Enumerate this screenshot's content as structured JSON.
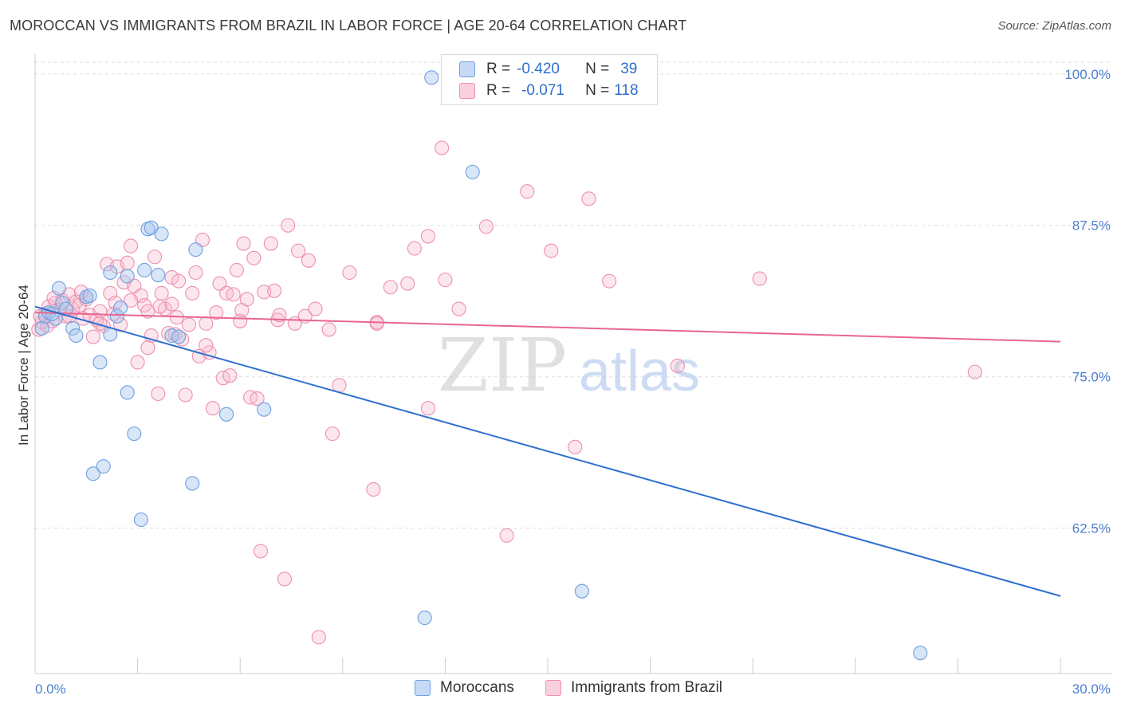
{
  "title": "MOROCCAN VS IMMIGRANTS FROM BRAZIL IN LABOR FORCE | AGE 20-64 CORRELATION CHART",
  "source": "Source: ZipAtlas.com",
  "watermark": {
    "zip": "ZIP",
    "atlas": "atlas"
  },
  "colors": {
    "blue_fill": "#a9c8f0",
    "blue_stroke": "#6f9fe0",
    "blue_line": "#2e6fd0",
    "pink_fill": "#f7b8cc",
    "pink_stroke": "#ee8fae",
    "pink_line": "#e8668f",
    "tick_text": "#4a7fd0",
    "grid": "#dddddd"
  },
  "legend": {
    "rows": [
      {
        "r_label": "R =",
        "r_value": "-0.420",
        "n_label": "N =",
        "n_value": "39"
      },
      {
        "r_label": "R =",
        "r_value": "-0.071",
        "n_label": "N =",
        "n_value": "118"
      }
    ]
  },
  "bottom_legend": [
    "Moroccans",
    "Immigrants from Brazil"
  ],
  "chart_data": {
    "type": "scatter",
    "title": "MOROCCAN VS IMMIGRANTS FROM BRAZIL IN LABOR FORCE | AGE 20-64 CORRELATION CHART",
    "xlabel": "",
    "ylabel": "In Labor Force | Age 20-64",
    "xlim": [
      0,
      30
    ],
    "ylim": [
      50.5,
      101.5
    ],
    "x_tick_labels": [
      "0.0%",
      "30.0%"
    ],
    "y_ticks": [
      62.5,
      75.0,
      87.5,
      100.0
    ],
    "y_tick_labels": [
      "62.5%",
      "75.0%",
      "87.5%",
      "100.0%"
    ],
    "grid": true,
    "series": [
      {
        "name": "Moroccans",
        "r": -0.42,
        "n": 39,
        "trend": [
          [
            0.0,
            80.8
          ],
          [
            30.0,
            56.9
          ]
        ],
        "points": [
          [
            0.2,
            79.0
          ],
          [
            0.3,
            80.0
          ],
          [
            0.4,
            80.3
          ],
          [
            0.6,
            79.8
          ],
          [
            0.7,
            82.3
          ],
          [
            0.8,
            81.1
          ],
          [
            0.9,
            80.6
          ],
          [
            1.1,
            79.0
          ],
          [
            1.2,
            78.4
          ],
          [
            1.5,
            81.6
          ],
          [
            1.6,
            81.7
          ],
          [
            1.9,
            76.2
          ],
          [
            2.2,
            78.5
          ],
          [
            2.2,
            83.6
          ],
          [
            2.4,
            80.0
          ],
          [
            2.5,
            80.7
          ],
          [
            2.7,
            73.7
          ],
          [
            2.7,
            83.3
          ],
          [
            2.9,
            70.3
          ],
          [
            3.1,
            63.2
          ],
          [
            3.2,
            83.8
          ],
          [
            3.3,
            87.2
          ],
          [
            3.4,
            87.3
          ],
          [
            3.6,
            83.4
          ],
          [
            3.7,
            86.8
          ],
          [
            4.0,
            78.4
          ],
          [
            4.6,
            66.2
          ],
          [
            4.7,
            85.5
          ],
          [
            5.6,
            71.9
          ],
          [
            6.7,
            72.3
          ],
          [
            11.4,
            55.1
          ],
          [
            11.6,
            99.7
          ],
          [
            12.8,
            91.9
          ],
          [
            16.0,
            57.3
          ],
          [
            25.9,
            52.2
          ],
          [
            1.7,
            67.0
          ],
          [
            2.0,
            67.6
          ],
          [
            0.5,
            80.2
          ],
          [
            4.2,
            78.3
          ]
        ]
      },
      {
        "name": "Immigrants from Brazil",
        "r": -0.071,
        "n": 118,
        "trend": [
          [
            0.0,
            80.3
          ],
          [
            30.0,
            77.9
          ]
        ],
        "points": [
          [
            0.1,
            78.9
          ],
          [
            0.2,
            79.5
          ],
          [
            0.3,
            80.2
          ],
          [
            0.4,
            80.8
          ],
          [
            0.5,
            79.6
          ],
          [
            0.6,
            81.1
          ],
          [
            0.7,
            80.5
          ],
          [
            0.8,
            81.3
          ],
          [
            0.9,
            80.0
          ],
          [
            1.0,
            81.8
          ],
          [
            1.1,
            80.6
          ],
          [
            1.2,
            81.2
          ],
          [
            1.3,
            80.9
          ],
          [
            1.4,
            79.8
          ],
          [
            1.5,
            81.4
          ],
          [
            1.6,
            80.1
          ],
          [
            1.7,
            78.3
          ],
          [
            1.8,
            79.7
          ],
          [
            1.9,
            80.4
          ],
          [
            2.0,
            79.2
          ],
          [
            2.1,
            84.3
          ],
          [
            2.2,
            81.9
          ],
          [
            2.3,
            80.2
          ],
          [
            2.4,
            84.1
          ],
          [
            2.5,
            79.3
          ],
          [
            2.6,
            82.8
          ],
          [
            2.7,
            84.4
          ],
          [
            2.8,
            85.8
          ],
          [
            2.9,
            82.5
          ],
          [
            3.0,
            76.2
          ],
          [
            3.1,
            81.7
          ],
          [
            3.2,
            80.9
          ],
          [
            3.3,
            80.4
          ],
          [
            3.4,
            78.4
          ],
          [
            3.5,
            84.9
          ],
          [
            3.6,
            73.6
          ],
          [
            3.7,
            81.9
          ],
          [
            3.8,
            80.6
          ],
          [
            3.9,
            78.6
          ],
          [
            4.0,
            83.2
          ],
          [
            4.1,
            78.5
          ],
          [
            4.2,
            82.9
          ],
          [
            4.3,
            78.1
          ],
          [
            4.4,
            73.5
          ],
          [
            4.5,
            79.3
          ],
          [
            4.6,
            81.9
          ],
          [
            4.7,
            83.6
          ],
          [
            4.8,
            76.7
          ],
          [
            4.9,
            86.3
          ],
          [
            5.0,
            79.4
          ],
          [
            5.1,
            77.0
          ],
          [
            5.2,
            72.4
          ],
          [
            5.3,
            80.3
          ],
          [
            5.4,
            82.7
          ],
          [
            5.5,
            74.9
          ],
          [
            5.6,
            81.9
          ],
          [
            5.8,
            81.8
          ],
          [
            5.9,
            83.8
          ],
          [
            6.0,
            79.6
          ],
          [
            6.1,
            86.0
          ],
          [
            6.2,
            81.4
          ],
          [
            6.3,
            73.3
          ],
          [
            6.4,
            84.8
          ],
          [
            6.5,
            73.2
          ],
          [
            6.6,
            60.6
          ],
          [
            6.7,
            82.0
          ],
          [
            6.9,
            86.0
          ],
          [
            7.0,
            82.1
          ],
          [
            7.1,
            79.7
          ],
          [
            7.3,
            58.3
          ],
          [
            7.4,
            87.5
          ],
          [
            7.6,
            79.4
          ],
          [
            7.7,
            85.4
          ],
          [
            7.9,
            80.0
          ],
          [
            8.0,
            84.6
          ],
          [
            8.2,
            80.6
          ],
          [
            8.3,
            53.5
          ],
          [
            8.6,
            78.9
          ],
          [
            8.7,
            70.3
          ],
          [
            8.9,
            74.3
          ],
          [
            9.2,
            83.6
          ],
          [
            9.9,
            65.7
          ],
          [
            10.0,
            79.5
          ],
          [
            10.4,
            82.4
          ],
          [
            10.9,
            82.7
          ],
          [
            11.1,
            85.6
          ],
          [
            11.5,
            72.4
          ],
          [
            11.5,
            86.6
          ],
          [
            11.9,
            93.9
          ],
          [
            12.0,
            83.0
          ],
          [
            12.4,
            80.6
          ],
          [
            13.2,
            87.4
          ],
          [
            13.8,
            61.9
          ],
          [
            14.4,
            90.3
          ],
          [
            15.1,
            85.4
          ],
          [
            15.8,
            69.2
          ],
          [
            16.2,
            89.7
          ],
          [
            16.8,
            82.9
          ],
          [
            18.8,
            75.9
          ],
          [
            21.2,
            83.1
          ],
          [
            27.5,
            75.4
          ],
          [
            0.15,
            80.0
          ],
          [
            0.35,
            79.2
          ],
          [
            1.0,
            80.0
          ],
          [
            1.9,
            79.4
          ],
          [
            2.8,
            81.3
          ],
          [
            3.3,
            77.4
          ],
          [
            4.0,
            81.0
          ],
          [
            5.0,
            77.6
          ],
          [
            5.7,
            75.1
          ],
          [
            10.0,
            79.4
          ],
          [
            0.55,
            81.5
          ],
          [
            1.35,
            82.0
          ],
          [
            2.35,
            81.1
          ],
          [
            3.65,
            80.8
          ],
          [
            4.15,
            79.9
          ],
          [
            6.05,
            80.5
          ],
          [
            7.15,
            80.1
          ]
        ]
      }
    ]
  }
}
